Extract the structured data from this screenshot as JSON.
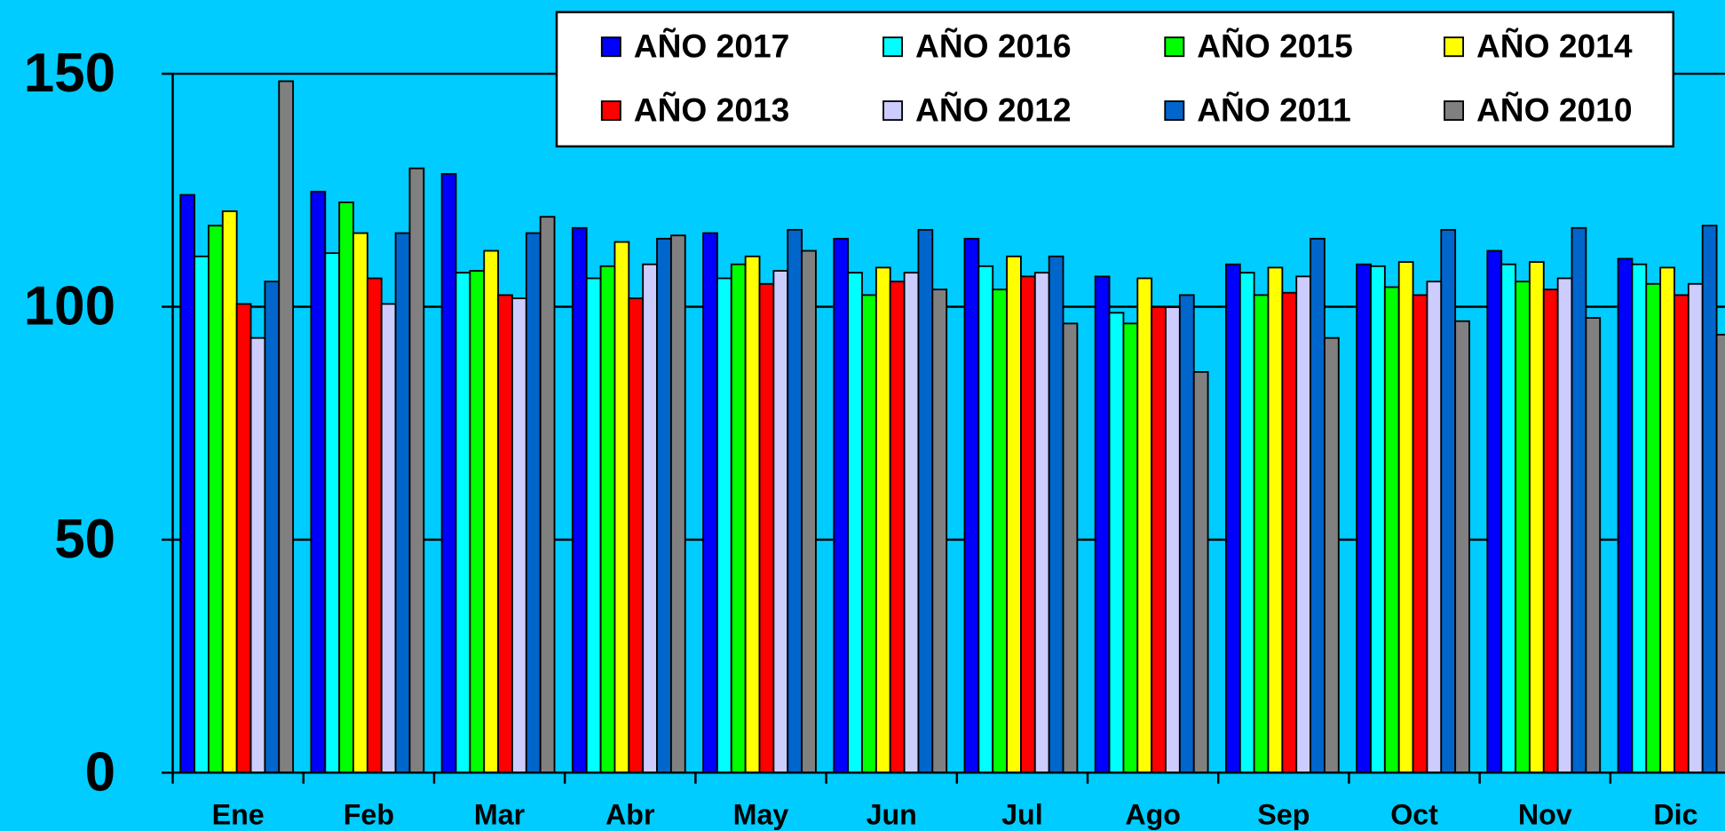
{
  "chart_data": {
    "type": "bar",
    "categories": [
      "Ene",
      "Feb",
      "Mar",
      "Abr",
      "May",
      "Jun",
      "Jul",
      "Ago",
      "Sep",
      "Oct",
      "Nov",
      "Dic"
    ],
    "series": [
      {
        "name": "AÑO 2017",
        "color": "#0000ff",
        "values": [
          124.0,
          124.7,
          128.5,
          116.9,
          115.8,
          114.6,
          114.6,
          106.5,
          109.1,
          109.1,
          112.0,
          110.3
        ]
      },
      {
        "name": "AÑO 2016",
        "color": "#00ffff",
        "values": [
          110.8,
          111.5,
          107.3,
          106.1,
          106.1,
          107.3,
          108.7,
          98.7,
          107.3,
          108.7,
          109.1,
          109.1
        ]
      },
      {
        "name": "AÑO 2015",
        "color": "#00ff00",
        "values": [
          117.4,
          122.4,
          107.7,
          108.7,
          109.1,
          102.5,
          103.7,
          96.4,
          102.5,
          104.2,
          105.4,
          104.9
        ]
      },
      {
        "name": "AÑO 2014",
        "color": "#ffff00",
        "values": [
          120.5,
          115.8,
          112.0,
          113.9,
          110.8,
          108.4,
          110.8,
          106.1,
          108.4,
          109.6,
          109.6,
          108.4
        ]
      },
      {
        "name": "AÑO 2013",
        "color": "#ff0000",
        "values": [
          100.6,
          106.1,
          102.5,
          101.8,
          104.9,
          105.4,
          106.5,
          99.9,
          103.0,
          102.5,
          103.7,
          102.5
        ]
      },
      {
        "name": "AÑO 2012",
        "color": "#ccccff",
        "values": [
          93.3,
          100.6,
          101.8,
          109.1,
          107.7,
          107.3,
          107.3,
          99.9,
          106.5,
          105.4,
          106.1,
          104.9
        ]
      },
      {
        "name": "AÑO 2011",
        "color": "#0066cc",
        "values": [
          105.4,
          115.8,
          115.8,
          114.6,
          116.5,
          116.5,
          110.8,
          102.5,
          114.6,
          116.5,
          116.9,
          117.4
        ]
      },
      {
        "name": "AÑO 2010",
        "color": "#808080",
        "values": [
          148.4,
          129.7,
          119.3,
          115.3,
          112.0,
          103.7,
          96.4,
          86.0,
          93.3,
          96.9,
          97.6,
          94.0
        ]
      }
    ],
    "ylim": [
      0,
      150
    ],
    "yticks": [
      0,
      50,
      100,
      150
    ],
    "grid": true,
    "legend": "top-right",
    "background": "#00ccff"
  }
}
